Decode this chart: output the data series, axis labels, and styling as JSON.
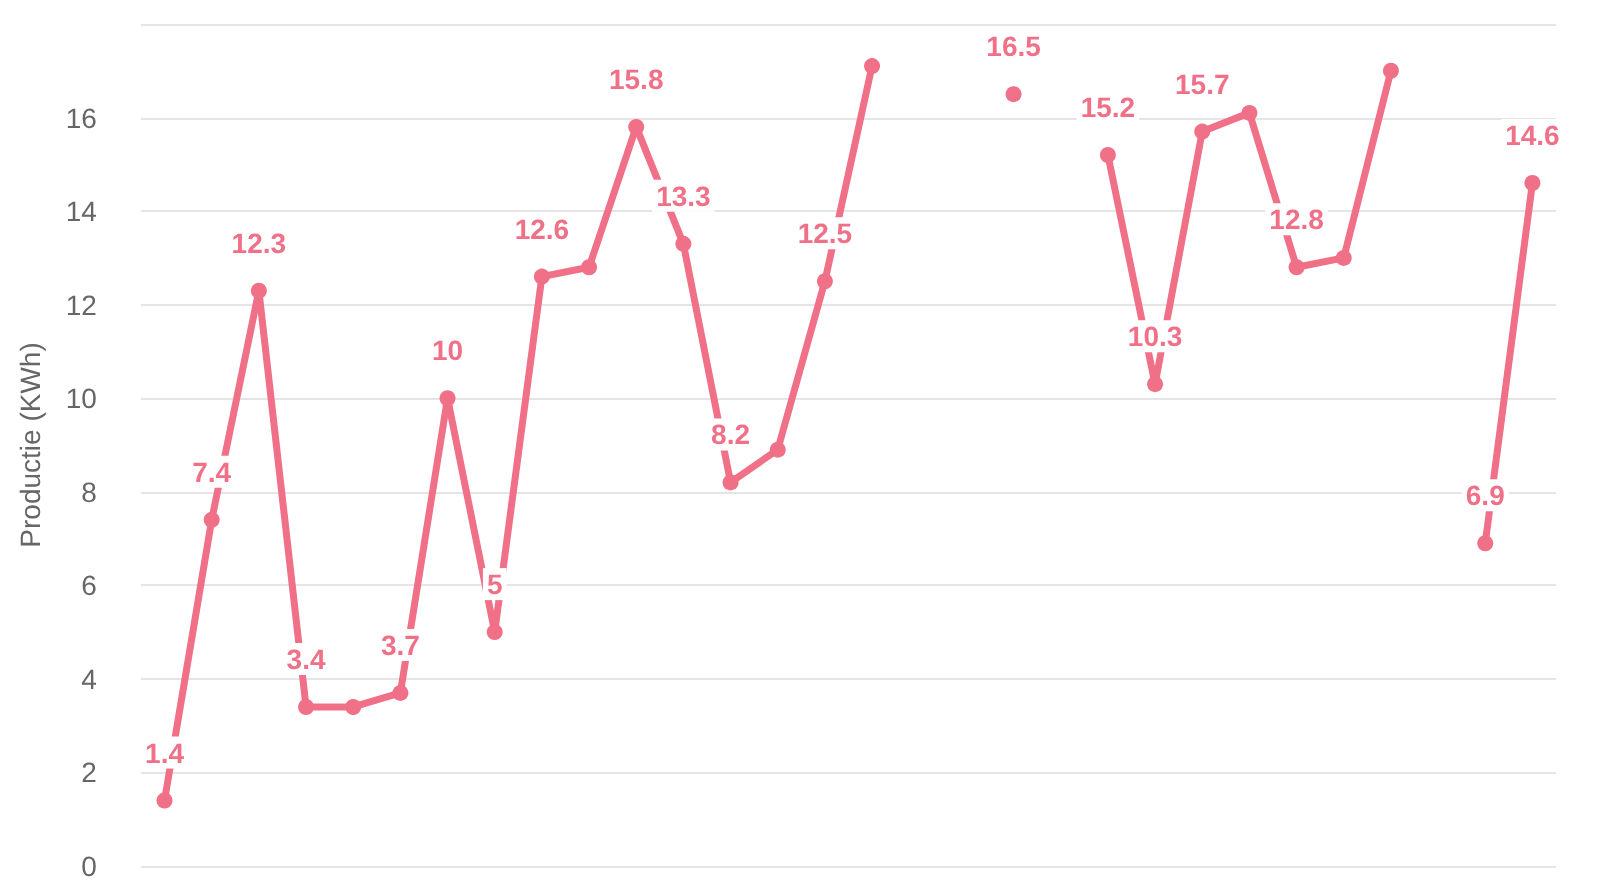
{
  "chart_data": {
    "type": "line",
    "ylabel": "Productie (KWh)",
    "categories": [
      null,
      null,
      null,
      null,
      null,
      null,
      null,
      null,
      null,
      null,
      null,
      null,
      null,
      null,
      null,
      null,
      null,
      null,
      null,
      null,
      null,
      null,
      null,
      null,
      null,
      null,
      null,
      null,
      null,
      null
    ],
    "series": [
      {
        "color": "#f07088",
        "values": [
          1.4,
          7.4,
          12.3,
          3.4,
          3.4,
          3.7,
          10,
          5,
          12.6,
          12.8,
          15.8,
          13.3,
          8.2,
          8.9,
          12.5,
          17.1,
          null,
          null,
          16.5,
          null,
          15.2,
          10.3,
          15.7,
          16.1,
          12.8,
          13.0,
          17.0,
          null,
          6.9,
          14.6
        ],
        "value_labels": [
          "1.4",
          "7.4",
          "12.3",
          "3.4",
          null,
          "3.7",
          "10",
          "5",
          "12.6",
          null,
          "15.8",
          "13.3",
          "8.2",
          null,
          "12.5",
          null,
          null,
          null,
          "16.5",
          null,
          "15.2",
          "10.3",
          "15.7",
          null,
          "12.8",
          null,
          null,
          null,
          "6.9",
          "14.6"
        ]
      }
    ],
    "ylim": [
      0,
      18
    ],
    "yticks": [
      0,
      2,
      4,
      6,
      8,
      10,
      12,
      14,
      16,
      {
        "value": 18,
        "label": null
      }
    ],
    "grid": "y",
    "marker": "circle",
    "line_style": "solid",
    "tick_labels": "y"
  }
}
